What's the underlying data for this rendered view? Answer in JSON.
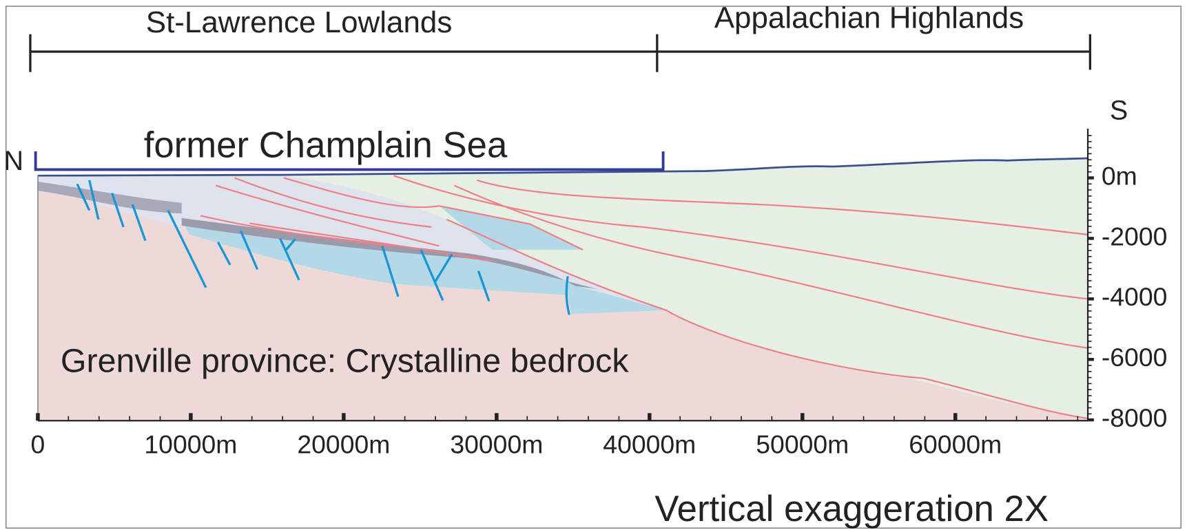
{
  "regions": {
    "lowlands": "St-Lawrence Lowlands",
    "highlands": "Appalachian Highlands"
  },
  "sea": "former Champlain Sea",
  "compass": {
    "north": "N",
    "south": "S"
  },
  "bedrock": "Grenville province: Crystalline bedrock",
  "x_axis": [
    "0",
    "10000m",
    "20000m",
    "30000m",
    "40000m",
    "50000m",
    "60000m"
  ],
  "y_axis": [
    "0m",
    "-2000",
    "-4000",
    "-6000",
    "-8000"
  ],
  "note": "Vertical exaggeration 2X"
}
